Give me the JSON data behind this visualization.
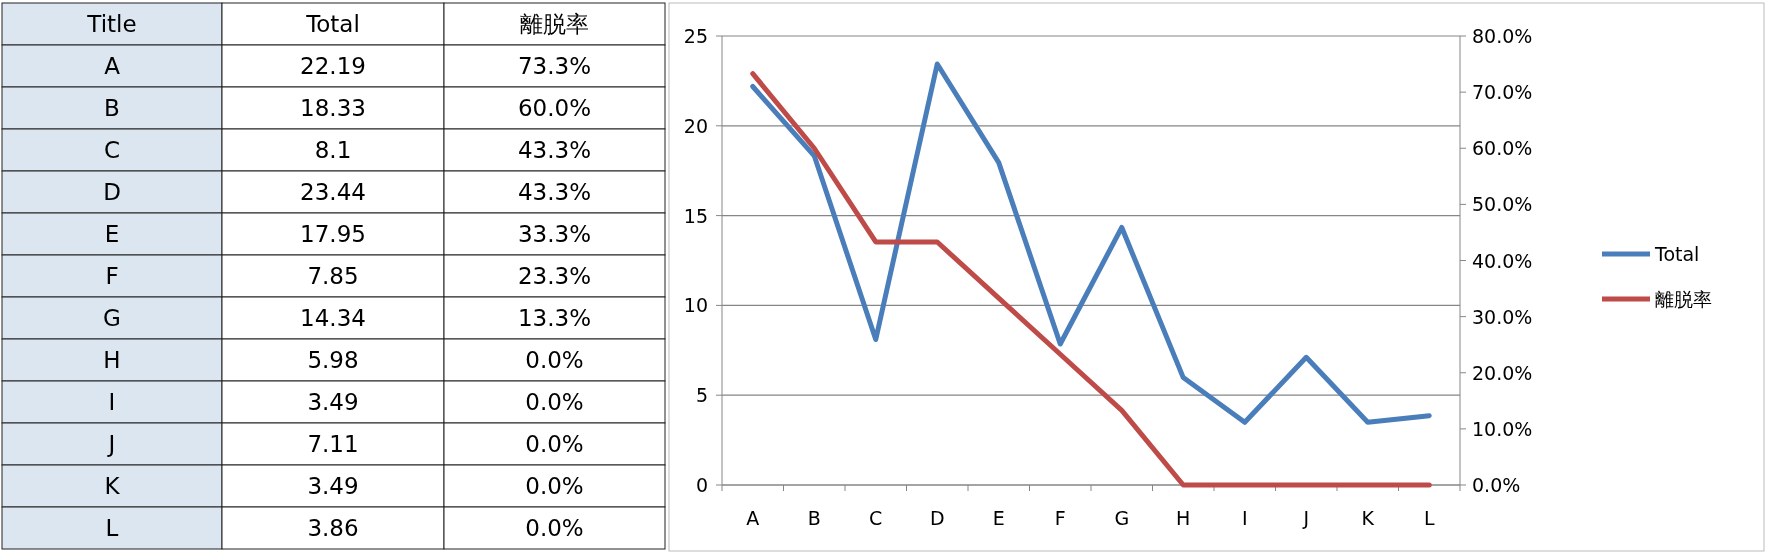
{
  "chart_data": [
    {
      "type": "other",
      "categories": [
        "A",
        "B",
        "C",
        "D",
        "E",
        "F",
        "G",
        "H",
        "I",
        "J",
        "K",
        "L"
      ],
      "annotations": [
        "Title",
        "Total",
        "離脱率",
        "22.19",
        "73.3%",
        "18.33",
        "60.0%",
        "8.1",
        "43.3%",
        "23.44",
        "43.3%",
        "17.95",
        "33.3%",
        "7.85",
        "23.3%",
        "14.34",
        "13.3%",
        "5.98",
        "0.0%",
        "3.49",
        "0.0%",
        "7.11",
        "0.0%",
        "3.49",
        "0.0%",
        "3.86",
        "0.0%"
      ]
    },
    {
      "type": "line",
      "categories": [
        "A",
        "B",
        "C",
        "D",
        "E",
        "F",
        "G",
        "H",
        "I",
        "J",
        "K",
        "L"
      ],
      "series": [
        {
          "name": "Total",
          "color": "#4a7ebb",
          "values": [
            22.19,
            18.33,
            8.1,
            23.44,
            17.95,
            7.85,
            14.34,
            5.98,
            3.49,
            7.11,
            3.49,
            3.86
          ]
        },
        {
          "name": "離脱率",
          "color": "#be4b48",
          "axis": "y2",
          "values": [
            73.3,
            60.0,
            43.3,
            43.3,
            33.3,
            23.3,
            13.3,
            0.0,
            0.0,
            0.0,
            0.0,
            0.0
          ]
        }
      ],
      "ylim": [
        0,
        25
      ],
      "yticks": [
        0,
        5,
        10,
        15,
        20,
        25
      ],
      "y2lim": [
        0,
        80
      ],
      "y2ticks": [
        {
          "value": 0,
          "label": "0.0%"
        },
        {
          "value": 10,
          "label": "10.0%"
        },
        {
          "value": 20,
          "label": "20.0%"
        },
        {
          "value": 30,
          "label": "30.0%"
        },
        {
          "value": 40,
          "label": "40.0%"
        },
        {
          "value": 50,
          "label": "50.0%"
        },
        {
          "value": 60,
          "label": "60.0%"
        },
        {
          "value": 70,
          "label": "70.0%"
        },
        {
          "value": 80,
          "label": "80.0%"
        }
      ],
      "grid": "y",
      "legend": "right",
      "marker": "none",
      "line_style": "solid"
    }
  ]
}
